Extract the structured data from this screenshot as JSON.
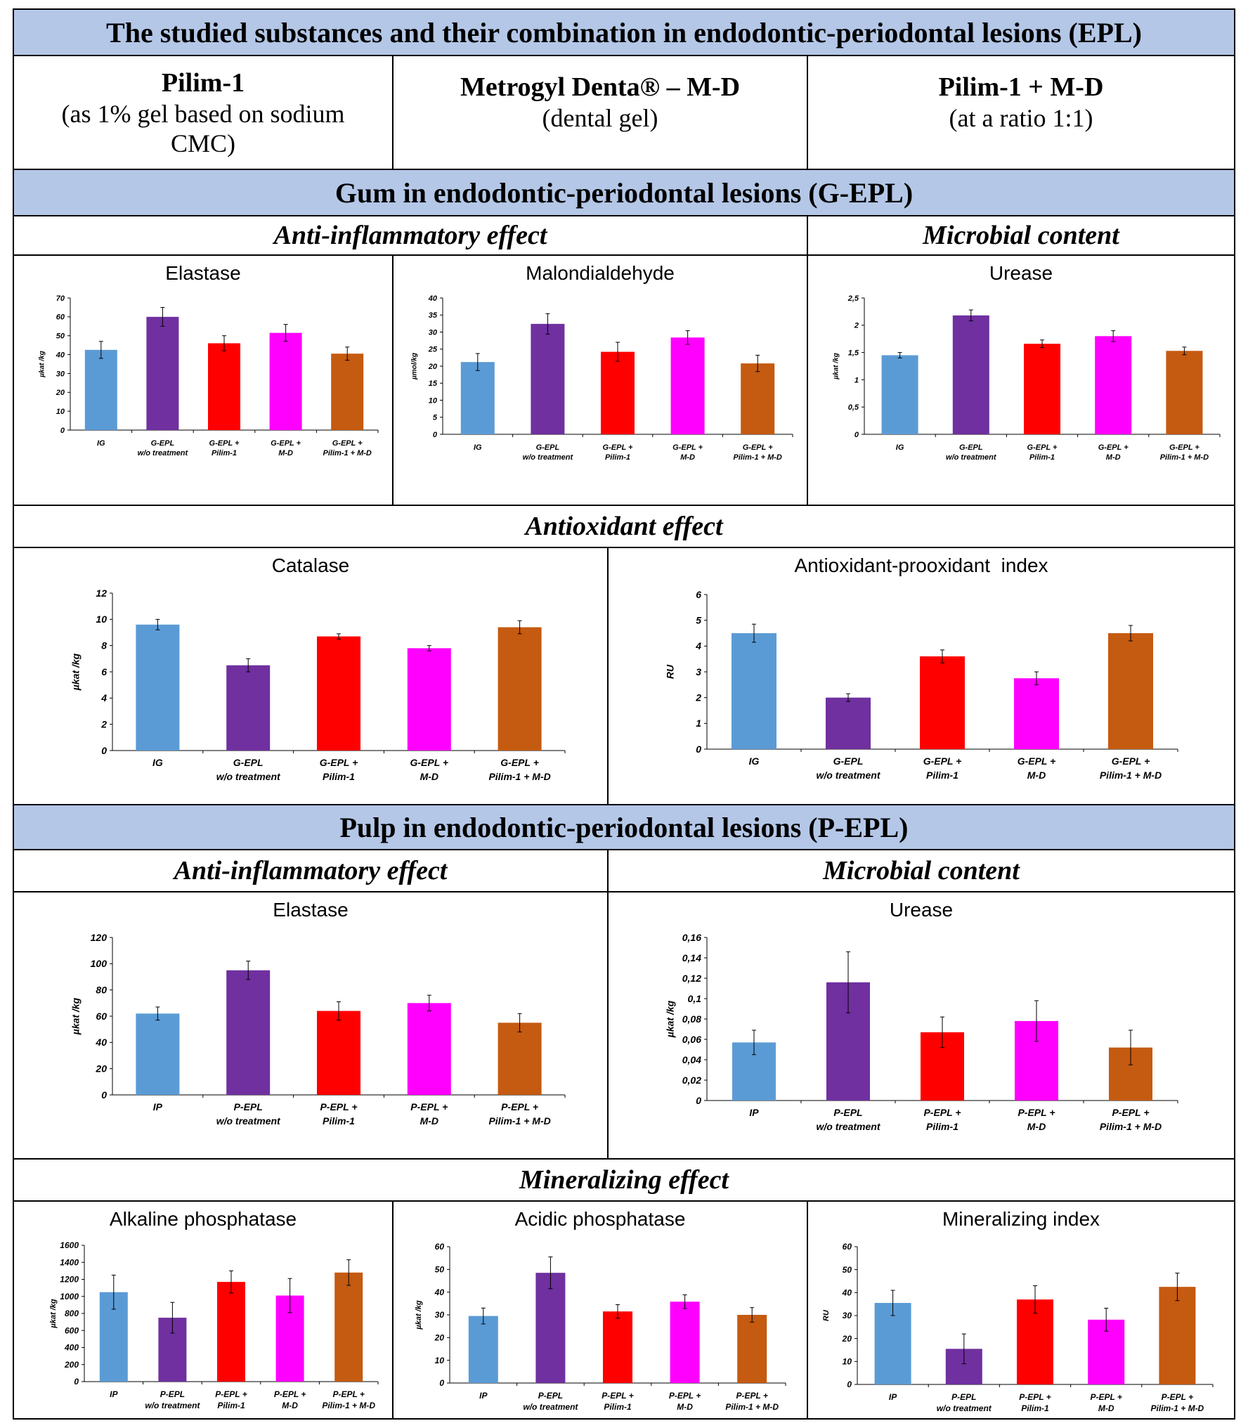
{
  "header": {
    "title": "The studied substances and their combination in endodontic-periodontal lesions (EPL)",
    "substances": [
      {
        "name": "Pilim-1",
        "desc": "(as 1% gel based on sodium CMC)"
      },
      {
        "name": "Metrogyl Denta® – M-D",
        "desc": "(dental gel)"
      },
      {
        "name": "Pilim-1 + M-D",
        "desc": "(at a ratio 1:1)"
      }
    ]
  },
  "gum": {
    "title": "Gum in endodontic-periodontal lesions (G-EPL)",
    "anti_inflammatory": "Anti-inflammatory effect",
    "microbial": "Microbial content",
    "antioxidant": "Antioxidant effect"
  },
  "pulp": {
    "title": "Pulp in endodontic-periodontal lesions (P-EPL)",
    "anti_inflammatory": "Anti-inflammatory effect",
    "microbial": "Microbial content",
    "mineralizing": "Mineralizing effect"
  },
  "colors": [
    "#5b9bd5",
    "#7030a0",
    "#ff0000",
    "#ff00ff",
    "#c55a11"
  ],
  "chart_data": [
    {
      "id": "g-elastase",
      "type": "bar",
      "title": "Elastase",
      "ylabel": "µkat /kg",
      "ylim": [
        0,
        70
      ],
      "ticks": [
        "0",
        "10",
        "20",
        "30",
        "40",
        "50",
        "60",
        "70"
      ],
      "categories": [
        [
          "IG"
        ],
        [
          "G-EPL",
          "w/o treatment"
        ],
        [
          "G-EPL +",
          "Pilim-1"
        ],
        [
          "G-EPL +",
          "M-D"
        ],
        [
          "G-EPL +",
          "Pilim-1 + M-D"
        ]
      ],
      "values": [
        42.5,
        60,
        46,
        51.5,
        40.5
      ],
      "errors": [
        4.5,
        5,
        4,
        4.5,
        3.5
      ]
    },
    {
      "id": "g-mda",
      "type": "bar",
      "title": "Malondialdehyde",
      "ylabel": "µmol/kg",
      "ylim": [
        0,
        40
      ],
      "ticks": [
        "0",
        "5",
        "10",
        "15",
        "20",
        "25",
        "30",
        "35",
        "40"
      ],
      "categories": [
        [
          "IG"
        ],
        [
          "G-EPL",
          "w/o treatment"
        ],
        [
          "G-EPL +",
          "Pilim-1"
        ],
        [
          "G-EPL +",
          "M-D"
        ],
        [
          "G-EPL +",
          "Pilim-1 + M-D"
        ]
      ],
      "values": [
        21.2,
        32.4,
        24.2,
        28.4,
        20.8
      ],
      "errors": [
        2.5,
        3,
        2.8,
        2,
        2.4
      ]
    },
    {
      "id": "g-urease",
      "type": "bar",
      "title": "Urease",
      "ylabel": "µkat /kg",
      "ylim": [
        0,
        2.5
      ],
      "ticks": [
        "0",
        "0,5",
        "1",
        "1,5",
        "2",
        "2,5"
      ],
      "categories": [
        [
          "IG"
        ],
        [
          "G-EPL",
          "w/o treatment"
        ],
        [
          "G-EPL +",
          "Pilim-1"
        ],
        [
          "G-EPL +",
          "M-D"
        ],
        [
          "G-EPL +",
          "Pilim-1 + M-D"
        ]
      ],
      "values": [
        1.45,
        2.18,
        1.66,
        1.8,
        1.53
      ],
      "errors": [
        0.05,
        0.1,
        0.07,
        0.1,
        0.07
      ]
    },
    {
      "id": "g-catalase",
      "type": "bar",
      "title": "Catalase",
      "ylabel": "µkat /kg",
      "ylim": [
        0,
        12
      ],
      "ticks": [
        "0",
        "2",
        "4",
        "6",
        "8",
        "10",
        "12"
      ],
      "categories": [
        [
          "IG"
        ],
        [
          "G-EPL",
          "w/o treatment"
        ],
        [
          "G-EPL +",
          "Pilim-1"
        ],
        [
          "G-EPL +",
          "M-D"
        ],
        [
          "G-EPL +",
          "Pilim-1 + M-D"
        ]
      ],
      "values": [
        9.6,
        6.5,
        8.7,
        7.8,
        9.4
      ],
      "errors": [
        0.4,
        0.5,
        0.2,
        0.2,
        0.5
      ]
    },
    {
      "id": "g-api",
      "type": "bar",
      "title": "Antioxidant-prooxidant  index",
      "ylabel": "RU",
      "ylim": [
        0,
        6
      ],
      "ticks": [
        "0",
        "1",
        "2",
        "3",
        "4",
        "5",
        "6"
      ],
      "categories": [
        [
          "IG"
        ],
        [
          "G-EPL",
          "w/o treatment"
        ],
        [
          "G-EPL +",
          "Pilim-1"
        ],
        [
          "G-EPL +",
          "M-D"
        ],
        [
          "G-EPL +",
          "Pilim-1 + M-D"
        ]
      ],
      "values": [
        4.5,
        2.0,
        3.6,
        2.75,
        4.5
      ],
      "errors": [
        0.35,
        0.15,
        0.25,
        0.25,
        0.3
      ]
    },
    {
      "id": "p-elastase",
      "type": "bar",
      "title": "Elastase",
      "ylabel": "µkat /kg",
      "ylim": [
        0,
        120
      ],
      "ticks": [
        "0",
        "20",
        "40",
        "60",
        "80",
        "100",
        "120"
      ],
      "categories": [
        [
          "IP"
        ],
        [
          "P-EPL",
          "w/o treatment"
        ],
        [
          "P-EPL +",
          "Pilim-1"
        ],
        [
          "P-EPL +",
          "M-D"
        ],
        [
          "P-EPL +",
          "Pilim-1 + M-D"
        ]
      ],
      "values": [
        62,
        95,
        64,
        70,
        55
      ],
      "errors": [
        5,
        7,
        7,
        6,
        7
      ]
    },
    {
      "id": "p-urease",
      "type": "bar",
      "title": "Urease",
      "ylabel": "µkat /kg",
      "ylim": [
        0,
        0.16
      ],
      "ticks": [
        "0",
        "0,02",
        "0,04",
        "0,06",
        "0,08",
        "0,1",
        "0,12",
        "0,14",
        "0,16"
      ],
      "categories": [
        [
          "IP"
        ],
        [
          "P-EPL",
          "w/o treatment"
        ],
        [
          "P-EPL +",
          "Pilim-1"
        ],
        [
          "P-EPL +",
          "M-D"
        ],
        [
          "P-EPL +",
          "Pilim-1 + M-D"
        ]
      ],
      "values": [
        0.057,
        0.116,
        0.067,
        0.078,
        0.052
      ],
      "errors": [
        0.012,
        0.03,
        0.015,
        0.02,
        0.017
      ]
    },
    {
      "id": "p-alp",
      "type": "bar",
      "title": "Alkaline phosphatase",
      "ylabel": "µkat /kg",
      "ylim": [
        0,
        1600
      ],
      "ticks": [
        "0",
        "200",
        "400",
        "600",
        "800",
        "1000",
        "1200",
        "1400",
        "1600"
      ],
      "categories": [
        [
          "IP"
        ],
        [
          "P-EPL",
          "w/o treatment"
        ],
        [
          "P-EPL +",
          "Pilim-1"
        ],
        [
          "P-EPL +",
          "M-D"
        ],
        [
          "P-EPL +",
          "Pilim-1 + M-D"
        ]
      ],
      "values": [
        1050,
        750,
        1170,
        1010,
        1280
      ],
      "errors": [
        200,
        180,
        130,
        200,
        150
      ]
    },
    {
      "id": "p-acp",
      "type": "bar",
      "title": "Acidic phosphatase",
      "ylabel": "µkat /kg",
      "ylim": [
        0,
        60
      ],
      "ticks": [
        "0",
        "10",
        "20",
        "30",
        "40",
        "50",
        "60"
      ],
      "categories": [
        [
          "IP"
        ],
        [
          "P-EPL",
          "w/o treatment"
        ],
        [
          "P-EPL +",
          "Pilim-1"
        ],
        [
          "P-EPL +",
          "M-D"
        ],
        [
          "P-EPL +",
          "Pilim-1 + M-D"
        ]
      ],
      "values": [
        29.5,
        48.5,
        31.5,
        35.8,
        30
      ],
      "errors": [
        3.5,
        7,
        3,
        3,
        3.2
      ]
    },
    {
      "id": "p-mi",
      "type": "bar",
      "title": "Mineralizing index",
      "ylabel": "RU",
      "ylim": [
        0,
        60
      ],
      "ticks": [
        "0",
        "10",
        "20",
        "30",
        "40",
        "50",
        "60"
      ],
      "categories": [
        [
          "IP"
        ],
        [
          "P-EPL",
          "w/o treatment"
        ],
        [
          "P-EPL +",
          "Pilim-1"
        ],
        [
          "P-EPL +",
          "M-D"
        ],
        [
          "P-EPL +",
          "Pilim-1 + M-D"
        ]
      ],
      "values": [
        35.5,
        15.5,
        37,
        28.2,
        42.5
      ],
      "errors": [
        5.5,
        6.5,
        6,
        5,
        6
      ]
    }
  ]
}
